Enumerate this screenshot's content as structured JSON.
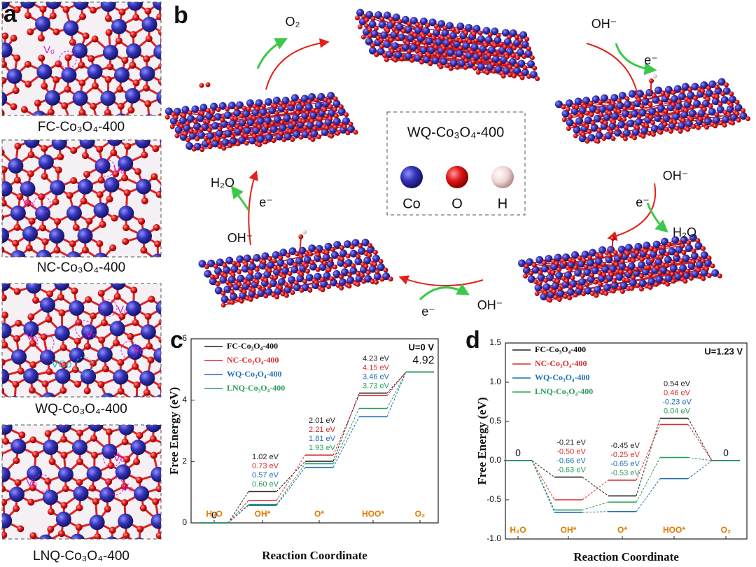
{
  "panel_labels": [
    "a",
    "b",
    "c",
    "d"
  ],
  "panel_a": {
    "images": [
      {
        "caption": "FC-Co₃O₄-400",
        "vacancy_labels": [
          "Vₒ"
        ]
      },
      {
        "caption": "NC-Co₃O₄-400",
        "vacancy_labels": [
          "Vₒ",
          "Vₒ"
        ]
      },
      {
        "caption": "WQ-Co₃O₄-400",
        "vacancy_labels": [
          "Vₒ",
          "Vₒ",
          "Vₒ",
          "Vₒ",
          "VCo"
        ]
      },
      {
        "caption": "LNQ-Co₃O₄-400",
        "vacancy_labels": [
          "Vₒ",
          "Vₒ",
          "Vₒ"
        ]
      }
    ]
  },
  "panel_b": {
    "legend_title": "WQ-Co₃O₄-400",
    "legend_items": [
      "Co",
      "O",
      "H"
    ],
    "species": [
      "O₂",
      "OH⁻",
      "e⁻",
      "OH⁻",
      "e⁻",
      "H₂O",
      "OH⁻",
      "e⁻",
      "OH⁻",
      "e⁻",
      "H₂O"
    ]
  },
  "chart_data": [
    {
      "type": "step",
      "annotation": "U=0 V",
      "x_label": "Reaction Coordinate",
      "y_label": "Free Energy (eV)",
      "categories": [
        "H₂O",
        "OH*",
        "O*",
        "HOO*",
        "O₂"
      ],
      "ylim": [
        0,
        6
      ],
      "yticks": [
        0,
        2,
        4,
        6
      ],
      "series": [
        {
          "name": "FC-Co₃O₄-400",
          "color": "#222222",
          "values": [
            0,
            1.02,
            2.01,
            4.23,
            4.92
          ],
          "value_labels": [
            null,
            "1.02 eV",
            "2.01 eV",
            "4.23 eV",
            null
          ]
        },
        {
          "name": "NC-Co₃O₄-400",
          "color": "#d92b2b",
          "values": [
            0,
            0.73,
            2.21,
            4.15,
            4.92
          ],
          "value_labels": [
            null,
            "0.73 eV",
            "2.21 eV",
            "4.15 eV",
            null
          ]
        },
        {
          "name": "WQ-Co₃O₄-400",
          "color": "#1f6fb5",
          "values": [
            0,
            0.57,
            1.81,
            3.46,
            4.92
          ],
          "value_labels": [
            null,
            "0.57 eV",
            "1.81 eV",
            "3.46 eV",
            null
          ]
        },
        {
          "name": "LNQ-Co₃O₄-400",
          "color": "#2a9d5c",
          "values": [
            0,
            0.6,
            1.93,
            3.73,
            4.92
          ],
          "value_labels": [
            null,
            "0.60 eV",
            "1.93 eV",
            "3.73 eV",
            null
          ]
        }
      ]
    },
    {
      "type": "step",
      "annotation": "U=1.23 V",
      "x_label": "Reaction Coordinate",
      "y_label": "Free Energy (eV)",
      "categories": [
        "H₂O",
        "OH*",
        "O*",
        "HOO*",
        "O₂"
      ],
      "ylim": [
        -1.0,
        1.5
      ],
      "yticks": [
        {
          "value": -1,
          "label": "-1.0"
        },
        -0.5,
        {
          "value": 0,
          "label": "0.0"
        },
        0.5,
        {
          "value": 1,
          "label": "1.0"
        },
        1.5
      ],
      "series": [
        {
          "name": "FC-Co₃O₄-400",
          "color": "#222222",
          "values": [
            0,
            -0.21,
            -0.45,
            0.54,
            0
          ],
          "value_labels": [
            null,
            "-0.21 eV",
            "-0.45 eV",
            "0.54 eV",
            null
          ]
        },
        {
          "name": "NC-Co₃O₄-400",
          "color": "#d92b2b",
          "values": [
            0,
            -0.5,
            -0.25,
            0.46,
            0
          ],
          "value_labels": [
            null,
            "-0.50 eV",
            "-0.25 eV",
            "0.46 eV",
            null
          ]
        },
        {
          "name": "WQ-Co₃O₄-400",
          "color": "#1f6fb5",
          "values": [
            0,
            -0.66,
            -0.65,
            -0.23,
            0
          ],
          "value_labels": [
            null,
            "-0.66 eV",
            "-0.65 eV",
            "-0.23 eV",
            null
          ]
        },
        {
          "name": "LNQ-Co₃O₄-400",
          "color": "#2a9d5c",
          "values": [
            0,
            -0.63,
            -0.53,
            0.04,
            0
          ],
          "value_labels": [
            null,
            "-0.63 eV",
            "-0.53 eV",
            "0.04 eV",
            null
          ]
        }
      ]
    }
  ]
}
